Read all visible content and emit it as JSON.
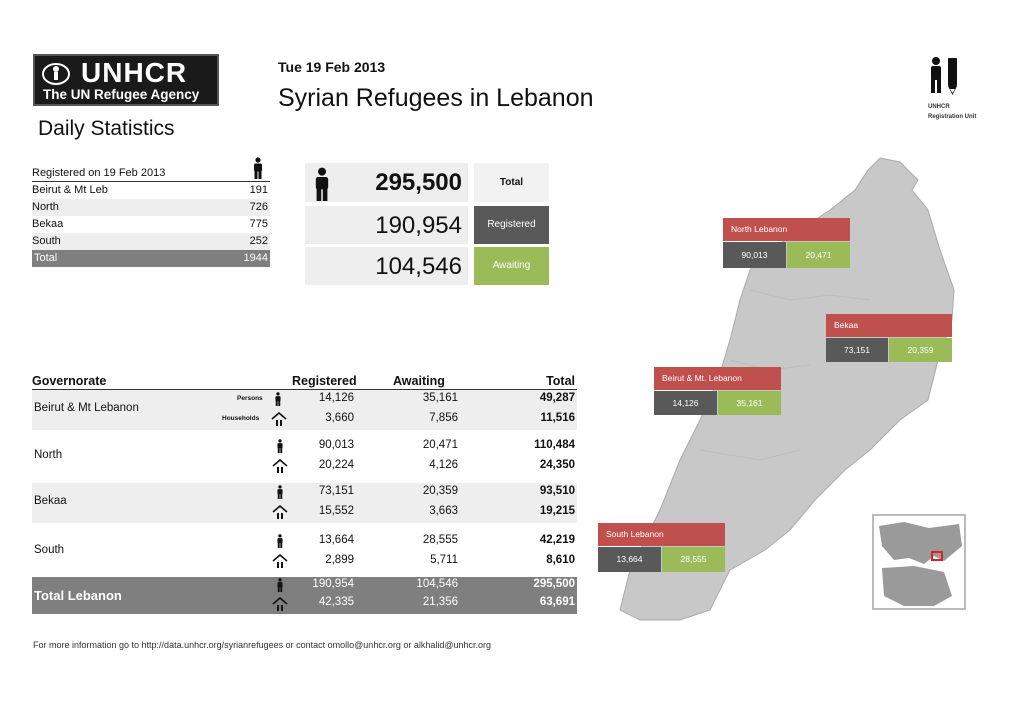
{
  "header": {
    "logo_name": "UNHCR",
    "logo_tagline": "The UN Refugee Agency",
    "section_title": "Daily Statistics",
    "date": "Tue 19 Feb 2013",
    "title": "Syrian Refugees in Lebanon",
    "unit_label_1": "UNHCR",
    "unit_label_2": "Registration Unit"
  },
  "daily": {
    "header": "Registered on 19 Feb 2013",
    "rows": [
      {
        "label": "Beirut & Mt Leb",
        "value": "191"
      },
      {
        "label": "North",
        "value": "726"
      },
      {
        "label": "Bekaa",
        "value": "775"
      },
      {
        "label": "South",
        "value": "252"
      },
      {
        "label": "Total",
        "value": "1944"
      }
    ]
  },
  "summary": {
    "total_value": "295,500",
    "total_label": "Total",
    "registered_value": "190,954",
    "registered_label": "Registered",
    "awaiting_value": "104,546",
    "awaiting_label": "Awaiting"
  },
  "governorates": {
    "headers": {
      "governorate": "Governorate",
      "registered": "Registered",
      "awaiting": "Awaiting",
      "total": "Total"
    },
    "persons_label": "Persons",
    "households_label": "Households",
    "rows": [
      {
        "name": "Beirut & Mt Lebanon",
        "persons": [
          "14,126",
          "35,161",
          "49,287"
        ],
        "households": [
          "3,660",
          "7,856",
          "11,516"
        ]
      },
      {
        "name": "North",
        "persons": [
          "90,013",
          "20,471",
          "110,484"
        ],
        "households": [
          "20,224",
          "4,126",
          "24,350"
        ]
      },
      {
        "name": "Bekaa",
        "persons": [
          "73,151",
          "20,359",
          "93,510"
        ],
        "households": [
          "15,552",
          "3,663",
          "19,215"
        ]
      },
      {
        "name": "South",
        "persons": [
          "13,664",
          "28,555",
          "42,219"
        ],
        "households": [
          "2,899",
          "5,711",
          "8,610"
        ]
      },
      {
        "name": "Total Lebanon",
        "persons": [
          "190,954",
          "104,546",
          "295,500"
        ],
        "households": [
          "42,335",
          "21,356",
          "63,691"
        ]
      }
    ]
  },
  "footer": "For more information go to   http://data.unhcr.org/syrianrefugees   or contact  omollo@unhcr.org  or alkhalid@unhcr.org",
  "map": {
    "regions": [
      {
        "name": "North Lebanon",
        "registered": "90,013",
        "awaiting": "20,471"
      },
      {
        "name": "Bekaa",
        "registered": "73,151",
        "awaiting": "20,359"
      },
      {
        "name": "Beirut & Mt. Lebanon",
        "registered": "14,126",
        "awaiting": "35,161"
      },
      {
        "name": "South Lebanon",
        "registered": "13,664",
        "awaiting": "28,555"
      }
    ]
  },
  "colors": {
    "red": "#c0504d",
    "grey": "#595959",
    "green": "#9bbb59",
    "total_bar": "#7f7f7f",
    "map_fill": "#c8c8c8"
  }
}
